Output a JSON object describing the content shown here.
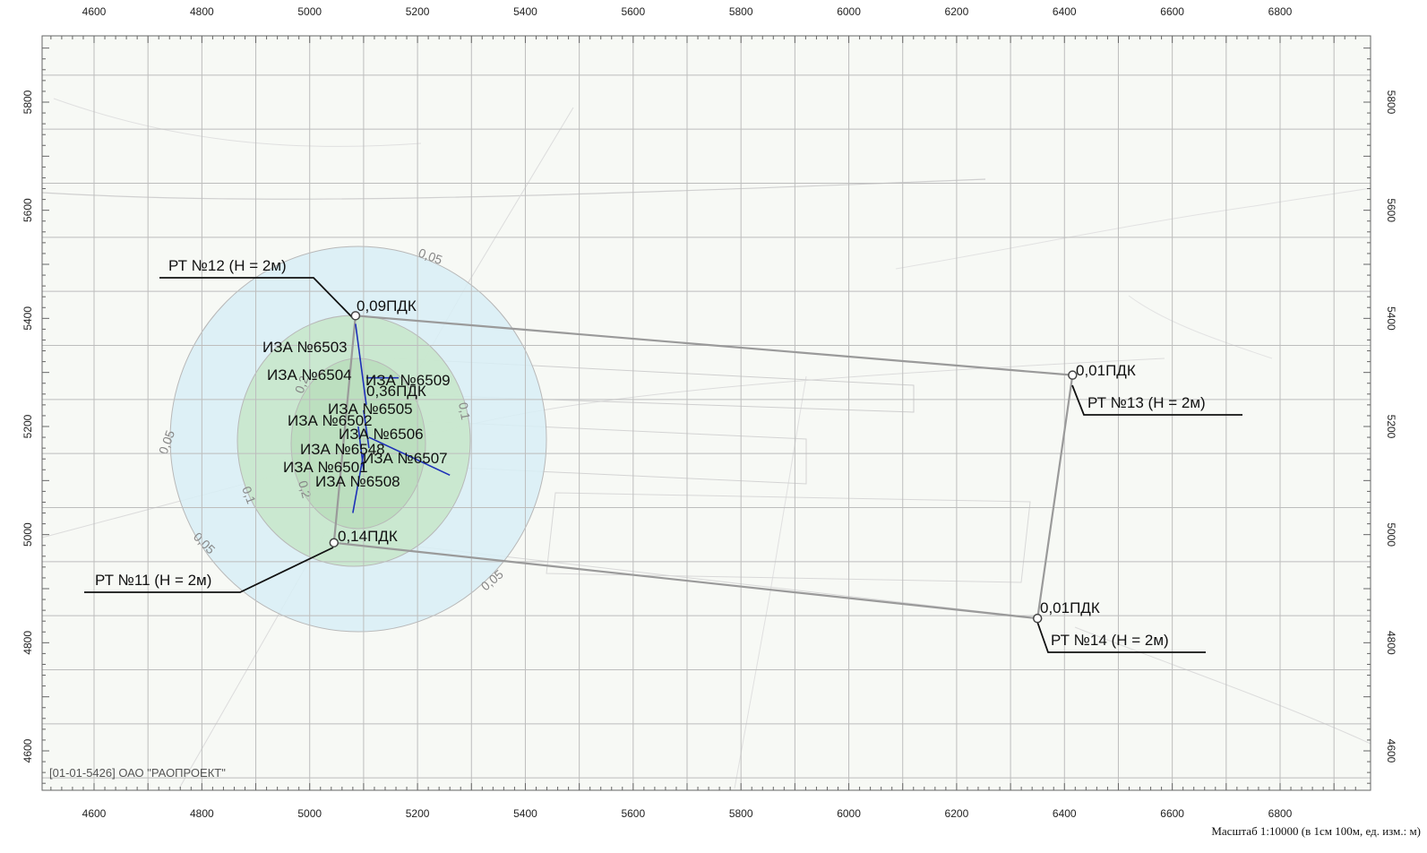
{
  "axes": {
    "x_ticks": [
      4600,
      4800,
      5000,
      5200,
      5400,
      5600,
      5800,
      6000,
      6200,
      6400,
      6600,
      6800
    ],
    "y_ticks": [
      5800,
      5600,
      5400,
      5200,
      5000,
      4800,
      4600
    ],
    "x_range": [
      4500,
      6950
    ],
    "y_range": [
      4550,
      5880
    ]
  },
  "control_points": [
    {
      "id": "rt12",
      "label": "РТ №12 (Н = 2м)",
      "value": "0,09ПДК",
      "x": 5085,
      "y": 5405
    },
    {
      "id": "rt11",
      "label": "РТ №11 (Н = 2м)",
      "value": "0,14ПДК",
      "x": 5045,
      "y": 4985
    },
    {
      "id": "rt13",
      "label": "РТ №13 (Н = 2м)",
      "value": "0,01ПДК",
      "x": 6415,
      "y": 5295
    },
    {
      "id": "rt14",
      "label": "РТ №14 (Н = 2м)",
      "value": "0,01ПДК",
      "x": 6350,
      "y": 4845
    }
  ],
  "emission_sources": [
    {
      "label": "ИЗА №6503",
      "x": 5090,
      "y": 5395
    },
    {
      "label": "ИЗА №6504",
      "x": 5095,
      "y": 5300
    },
    {
      "label": "ИЗА №6509",
      "x": 5105,
      "y": 5295
    },
    {
      "label": "ИЗА №6505",
      "x": 5100,
      "y": 5230
    },
    {
      "label": "ИЗА №6502",
      "x": 5100,
      "y": 5200
    },
    {
      "label": "ИЗА №6506",
      "x": 5110,
      "y": 5180
    },
    {
      "label": "ИЗА №6548",
      "x": 5115,
      "y": 5150
    },
    {
      "label": "ИЗА №6507",
      "x": 5150,
      "y": 5130
    },
    {
      "label": "ИЗА №6501",
      "x": 5105,
      "y": 5140
    },
    {
      "label": "ИЗА №6508",
      "x": 5100,
      "y": 5050
    }
  ],
  "max_value_label": "0,36ПДК",
  "isolines": [
    "0,05",
    "0,05",
    "0,05",
    "0,05",
    "0,1",
    "0,1",
    "0,2",
    "0,2"
  ],
  "org_label": "[01-01-5426] ОАО \"РАОПРОЕКТ\"",
  "scale_label": "Масштаб 1:10000 (в 1см 100м, ед. изм.: м)",
  "colors": {
    "grid": "#bdbdbd",
    "frame": "#666666",
    "zone_outer": "#d8eef6",
    "zone_inner": "#c7e6c9",
    "boundary": "#9a9a9a",
    "source_line": "#1d2fb8"
  }
}
